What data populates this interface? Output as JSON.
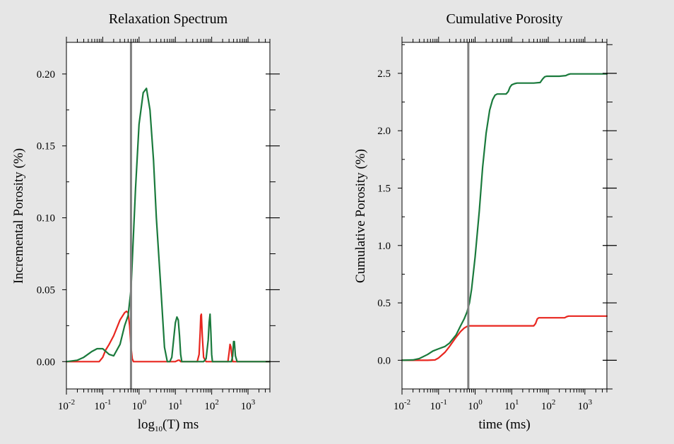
{
  "chart_data": [
    {
      "type": "line",
      "title": "Relaxation Spectrum",
      "xlabel": "log10(T) ms",
      "xlabel_base": "log",
      "xlabel_sub": "10",
      "xlabel_rest": "(T) ms",
      "ylabel": "Incremental Porosity (%)",
      "xscale": "log",
      "xlim": [
        0.01,
        4000
      ],
      "ylim": [
        -0.019,
        0.222
      ],
      "yticks": [
        0.0,
        0.05,
        0.1,
        0.15,
        0.2
      ],
      "ytick_labels": [
        "0.00",
        "0.05",
        "0.10",
        "0.15",
        "0.20"
      ],
      "xticks": [
        {
          "base": "10",
          "exp": "-2",
          "value": 0.01
        },
        {
          "base": "10",
          "exp": "-1",
          "value": 0.1
        },
        {
          "base": "10",
          "exp": "0",
          "value": 1
        },
        {
          "base": "10",
          "exp": "1",
          "value": 10
        },
        {
          "base": "10",
          "exp": "2",
          "value": 100
        },
        {
          "base": "10",
          "exp": "3",
          "value": 1000
        }
      ],
      "cutoff_line": {
        "x": 0.6,
        "color": "#808080"
      },
      "series": [
        {
          "name": "green",
          "color": "#1a7a3c",
          "x": [
            0.01,
            0.02,
            0.03,
            0.05,
            0.07,
            0.1,
            0.15,
            0.2,
            0.3,
            0.4,
            0.5,
            0.6,
            0.8,
            1.0,
            1.3,
            1.6,
            2.0,
            2.5,
            3.0,
            4.0,
            5.0,
            6.0,
            7.0,
            8.0,
            9.0,
            10,
            11,
            12,
            13,
            14,
            15,
            17,
            20,
            40,
            50,
            60,
            70,
            80,
            85,
            90,
            95,
            100,
            105,
            110,
            120,
            200,
            300,
            350,
            380,
            400,
            420,
            450,
            500,
            4000
          ],
          "y": [
            0,
            0.001,
            0.003,
            0.007,
            0.009,
            0.009,
            0.005,
            0.004,
            0.012,
            0.025,
            0.032,
            0.05,
            0.12,
            0.165,
            0.187,
            0.19,
            0.175,
            0.14,
            0.1,
            0.05,
            0.01,
            0,
            0,
            0.003,
            0.016,
            0.027,
            0.031,
            0.029,
            0.018,
            0.005,
            0,
            0,
            0,
            0,
            0,
            0,
            0.002,
            0.015,
            0.027,
            0.033,
            0.02,
            0.005,
            0,
            0,
            0,
            0,
            0,
            0,
            0.004,
            0.014,
            0.014,
            0.004,
            0,
            0
          ]
        },
        {
          "name": "red",
          "color": "#e8261f",
          "x": [
            0.01,
            0.05,
            0.08,
            0.1,
            0.12,
            0.15,
            0.2,
            0.3,
            0.4,
            0.45,
            0.5,
            0.55,
            0.6,
            0.65,
            0.7,
            1.0,
            10,
            12,
            13,
            14,
            20,
            40,
            45,
            48,
            50,
            52,
            55,
            60,
            70,
            280,
            300,
            320,
            340,
            360,
            380,
            4000
          ],
          "y": [
            0,
            0,
            0,
            0.003,
            0.008,
            0.012,
            0.018,
            0.029,
            0.034,
            0.035,
            0.034,
            0.025,
            0.01,
            0.002,
            0,
            0,
            0,
            0.001,
            0.001,
            0,
            0,
            0,
            0.005,
            0.02,
            0.032,
            0.033,
            0.018,
            0.003,
            0,
            0,
            0.006,
            0.012,
            0.01,
            0.004,
            0,
            0
          ]
        }
      ]
    },
    {
      "type": "line",
      "title": "Cumulative Porosity",
      "xlabel": "time (ms)",
      "ylabel": "Cumulative Porosity (%)",
      "xscale": "log",
      "xlim": [
        0.01,
        4000
      ],
      "ylim": [
        -0.25,
        2.77
      ],
      "yticks": [
        0.0,
        0.5,
        1.0,
        1.5,
        2.0,
        2.5
      ],
      "ytick_labels": [
        "0.0",
        "0.5",
        "1.0",
        "1.5",
        "2.0",
        "2.5"
      ],
      "xticks": [
        {
          "base": "10",
          "exp": "-2",
          "value": 0.01
        },
        {
          "base": "10",
          "exp": "-1",
          "value": 0.1
        },
        {
          "base": "10",
          "exp": "0",
          "value": 1
        },
        {
          "base": "10",
          "exp": "1",
          "value": 10
        },
        {
          "base": "10",
          "exp": "2",
          "value": 100
        },
        {
          "base": "10",
          "exp": "3",
          "value": 1000
        }
      ],
      "cutoff_line": {
        "x": 0.65,
        "color": "#808080"
      },
      "series": [
        {
          "name": "green",
          "color": "#1a7a3c",
          "x": [
            0.01,
            0.02,
            0.03,
            0.05,
            0.07,
            0.1,
            0.15,
            0.2,
            0.3,
            0.4,
            0.5,
            0.6,
            0.7,
            0.8,
            1.0,
            1.3,
            1.6,
            2.0,
            2.5,
            3.0,
            3.5,
            4.0,
            5.0,
            7.0,
            8.0,
            9.0,
            10,
            12,
            14,
            20,
            40,
            60,
            70,
            80,
            90,
            100,
            200,
            300,
            350,
            400,
            500,
            4000
          ],
          "y": [
            0,
            0.003,
            0.015,
            0.05,
            0.08,
            0.1,
            0.12,
            0.15,
            0.22,
            0.3,
            0.36,
            0.42,
            0.5,
            0.62,
            0.9,
            1.3,
            1.68,
            1.98,
            2.18,
            2.27,
            2.31,
            2.32,
            2.32,
            2.32,
            2.34,
            2.38,
            2.4,
            2.41,
            2.415,
            2.415,
            2.415,
            2.42,
            2.45,
            2.47,
            2.475,
            2.475,
            2.475,
            2.48,
            2.49,
            2.495,
            2.495,
            2.495
          ]
        },
        {
          "name": "red",
          "color": "#e8261f",
          "x": [
            0.01,
            0.05,
            0.08,
            0.1,
            0.15,
            0.2,
            0.3,
            0.4,
            0.5,
            0.6,
            0.7,
            0.8,
            1.0,
            10,
            40,
            45,
            50,
            55,
            60,
            70,
            100,
            280,
            320,
            360,
            4000
          ],
          "y": [
            0,
            0,
            0.003,
            0.02,
            0.07,
            0.12,
            0.2,
            0.25,
            0.28,
            0.295,
            0.3,
            0.3,
            0.3,
            0.3,
            0.3,
            0.32,
            0.36,
            0.37,
            0.37,
            0.37,
            0.37,
            0.37,
            0.38,
            0.385,
            0.385
          ]
        }
      ]
    }
  ]
}
